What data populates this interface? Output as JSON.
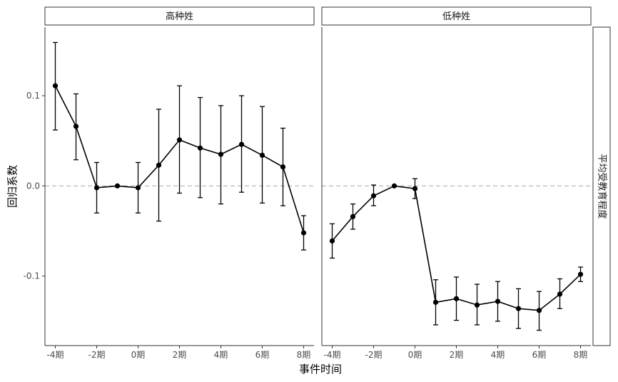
{
  "chart_data": {
    "type": "line",
    "xlabel": "事件时间",
    "ylabel": "回归系数",
    "right_strip_label": "平均受教育程度",
    "x_tick_labels": [
      "-4期",
      "-2期",
      "0期",
      "2期",
      "4期",
      "6期",
      "8期"
    ],
    "x_ticks": [
      -4,
      -2,
      0,
      2,
      4,
      6,
      8
    ],
    "xlim": [
      -4.5,
      8.5
    ],
    "y_tick_labels": [
      "-0.1",
      "0.0",
      "0.1"
    ],
    "y_ticks": [
      -0.1,
      0.0,
      0.1
    ],
    "ylim": [
      -0.177,
      0.176
    ],
    "reference_line": 0,
    "panels": [
      {
        "label": "高种姓",
        "points": [
          {
            "x": -4,
            "y": 0.111,
            "lo": 0.062,
            "hi": 0.159
          },
          {
            "x": -3,
            "y": 0.066,
            "lo": 0.029,
            "hi": 0.102
          },
          {
            "x": -2,
            "y": -0.002,
            "lo": -0.03,
            "hi": 0.026
          },
          {
            "x": -1,
            "y": 0.0,
            "lo": null,
            "hi": null
          },
          {
            "x": 0,
            "y": -0.002,
            "lo": -0.03,
            "hi": 0.026
          },
          {
            "x": 1,
            "y": 0.023,
            "lo": -0.039,
            "hi": 0.085
          },
          {
            "x": 2,
            "y": 0.051,
            "lo": -0.008,
            "hi": 0.111
          },
          {
            "x": 3,
            "y": 0.042,
            "lo": -0.013,
            "hi": 0.098
          },
          {
            "x": 4,
            "y": 0.035,
            "lo": -0.02,
            "hi": 0.089
          },
          {
            "x": 5,
            "y": 0.046,
            "lo": -0.007,
            "hi": 0.1
          },
          {
            "x": 6,
            "y": 0.034,
            "lo": -0.019,
            "hi": 0.088
          },
          {
            "x": 7,
            "y": 0.021,
            "lo": -0.022,
            "hi": 0.064
          },
          {
            "x": 8,
            "y": -0.052,
            "lo": -0.071,
            "hi": -0.033
          }
        ]
      },
      {
        "label": "低种姓",
        "points": [
          {
            "x": -4,
            "y": -0.061,
            "lo": -0.08,
            "hi": -0.042
          },
          {
            "x": -3,
            "y": -0.034,
            "lo": -0.048,
            "hi": -0.02
          },
          {
            "x": -2,
            "y": -0.011,
            "lo": -0.022,
            "hi": 0.001
          },
          {
            "x": -1,
            "y": 0.0,
            "lo": null,
            "hi": null
          },
          {
            "x": 0,
            "y": -0.003,
            "lo": -0.014,
            "hi": 0.008
          },
          {
            "x": 1,
            "y": -0.129,
            "lo": -0.154,
            "hi": -0.104
          },
          {
            "x": 2,
            "y": -0.125,
            "lo": -0.149,
            "hi": -0.101
          },
          {
            "x": 3,
            "y": -0.132,
            "lo": -0.154,
            "hi": -0.109
          },
          {
            "x": 4,
            "y": -0.128,
            "lo": -0.15,
            "hi": -0.106
          },
          {
            "x": 5,
            "y": -0.136,
            "lo": -0.158,
            "hi": -0.114
          },
          {
            "x": 6,
            "y": -0.138,
            "lo": -0.16,
            "hi": -0.117
          },
          {
            "x": 7,
            "y": -0.12,
            "lo": -0.136,
            "hi": -0.103
          },
          {
            "x": 8,
            "y": -0.098,
            "lo": -0.106,
            "hi": -0.09
          }
        ]
      }
    ],
    "colors": {
      "line": "#000000",
      "point": "#000000",
      "errorbar": "#000000",
      "reference": "#a6a6a6",
      "frame": "#333333",
      "strip_fill": "#ffffff",
      "tick": "#333333"
    }
  }
}
